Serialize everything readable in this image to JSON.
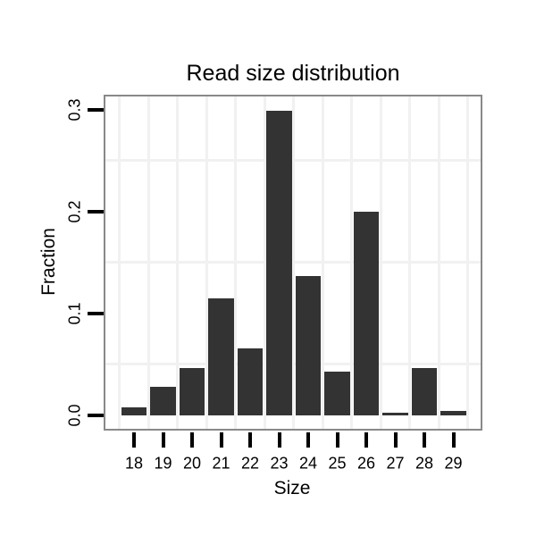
{
  "chart_data": {
    "type": "bar",
    "title": "Read size distribution",
    "xlabel": "Size",
    "ylabel": "Fraction",
    "categories": [
      "18",
      "19",
      "20",
      "21",
      "22",
      "23",
      "24",
      "25",
      "26",
      "27",
      "28",
      "29"
    ],
    "values": [
      0.008,
      0.028,
      0.046,
      0.115,
      0.066,
      0.299,
      0.137,
      0.043,
      0.2,
      0.003,
      0.046,
      0.004
    ],
    "y_ticks": [
      0.0,
      0.1,
      0.2,
      0.3
    ],
    "y_tick_labels": [
      "0.0",
      "0.1",
      "0.2",
      "0.3"
    ],
    "ylim": [
      -0.013,
      0.313
    ],
    "grid": {
      "horizontal_minor_values": [
        0.05,
        0.15,
        0.25
      ],
      "vertical_lines": "between-categories",
      "grid_on": true
    },
    "legend": "none",
    "colors": {
      "bar_fill": "#333333",
      "panel_border": "#898989",
      "gridline": "#f1f1f1",
      "axis_tick": "#000000",
      "text": "#000000",
      "background": "#ffffff"
    }
  }
}
